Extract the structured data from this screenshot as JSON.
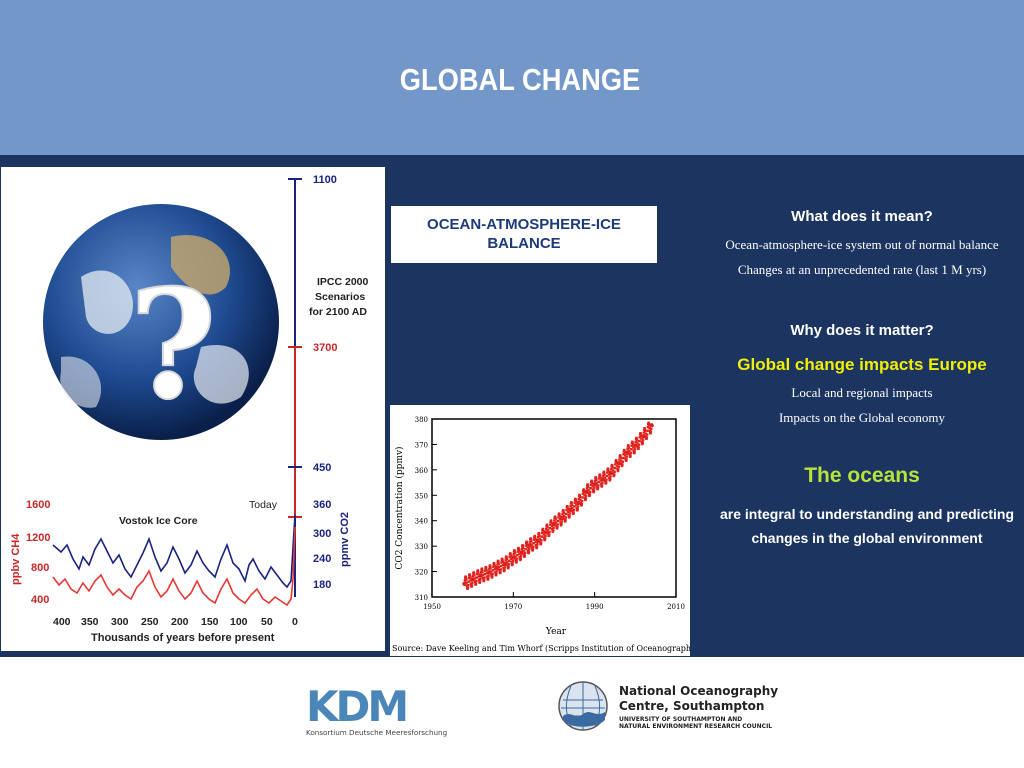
{
  "header": {
    "title": "GLOBAL CHANGE",
    "color": "#7397c8"
  },
  "panel": {
    "color": "#1b3460"
  },
  "balance_box": {
    "label": "OCEAN-ATMOSPHERE-ICE BALANCE"
  },
  "right": {
    "q1": "What does it mean?",
    "s1": "Ocean-atmosphere-ice system out of normal balance",
    "s2": "Changes at an unprecedented rate (last 1 M yrs)",
    "q2": "Why does it matter?",
    "impacts": "Global change impacts Europe",
    "s3": "Local and regional impacts",
    "s4": "Impacts on the Global economy",
    "oceans": "The oceans",
    "integral_line1": "are integral to understanding and predicting",
    "integral_line2": "changes in the global environment"
  },
  "vostok": {
    "question_mark": "?",
    "ipcc_line1": "IPCC 2000",
    "ipcc_line2": "Scenarios",
    "ipcc_line3": "for 2100 AD",
    "co2_ticks": [
      "1100",
      "3700",
      "450",
      "360",
      "300",
      "240",
      "180"
    ],
    "today": "Today",
    "vostok_label": "Vostok Ice Core",
    "ch4_ticks": [
      "1600",
      "1200",
      "800",
      "400"
    ],
    "ch4_axis": "ppbv CH4",
    "co2_axis": "ppmv CO2",
    "x_ticks": [
      "400",
      "350",
      "300",
      "250",
      "200",
      "150",
      "100",
      "50",
      "0"
    ],
    "x_label": "Thousands of years before present"
  },
  "chart_data": {
    "type": "scatter",
    "title": "",
    "xlabel": "Year",
    "ylabel": "CO2 Concentration (ppmv)",
    "xlim": [
      1950,
      2010
    ],
    "ylim": [
      310,
      380
    ],
    "xticks": [
      "1950",
      "1970",
      "1990",
      "2010"
    ],
    "yticks": [
      "380",
      "370",
      "360",
      "350",
      "340",
      "330",
      "320",
      "310"
    ],
    "source": "Source: Dave Keeling and Tim Whorf (Scripps Institution of Oceanography)",
    "x": [
      1958,
      1960,
      1962,
      1964,
      1966,
      1968,
      1970,
      1972,
      1974,
      1976,
      1978,
      1980,
      1982,
      1984,
      1986,
      1988,
      1990,
      1992,
      1994,
      1996,
      1998,
      2000,
      2002,
      2004
    ],
    "y": [
      315.2,
      316.9,
      318.4,
      319.6,
      321.4,
      323.0,
      325.5,
      327.4,
      330.2,
      332.1,
      335.4,
      338.7,
      341.1,
      344.3,
      347.0,
      351.3,
      354.2,
      356.3,
      358.8,
      362.6,
      366.7,
      369.5,
      373.2,
      377.5
    ]
  },
  "logos": {
    "kdm_text": "KDM",
    "kdm_sub": "Konsortium Deutsche Meeresforschung",
    "noc_line1": "National Oceanography",
    "noc_line2": "Centre, Southampton",
    "noc_sub1": "UNIVERSITY OF SOUTHAMPTON AND",
    "noc_sub2": "NATURAL ENVIRONMENT RESEARCH COUNCIL"
  }
}
